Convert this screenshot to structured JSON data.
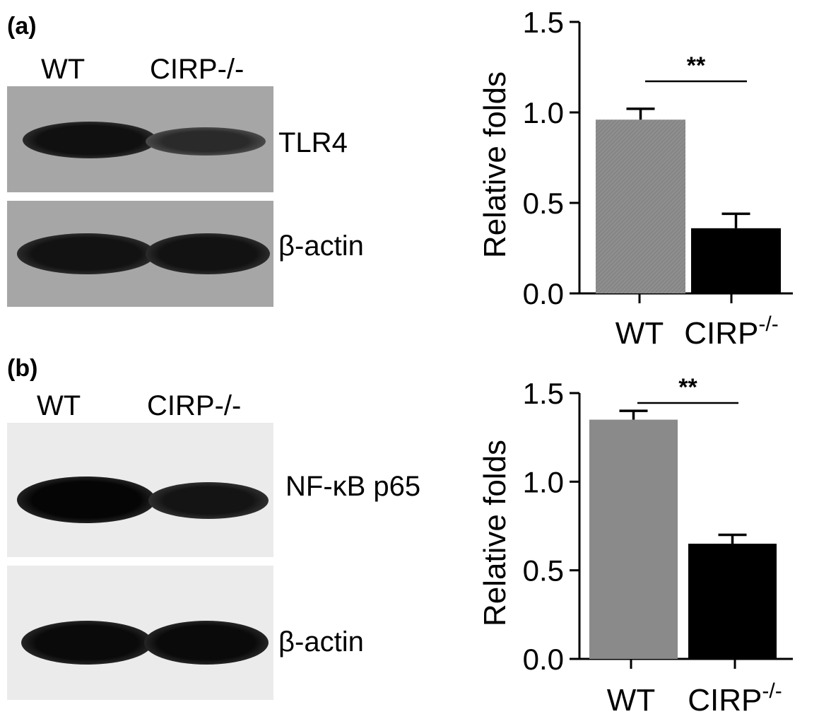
{
  "panel_a": {
    "label": "(a)",
    "blot": {
      "lanes": [
        "WT",
        "CIRP-/-"
      ],
      "bands": [
        "TLR4",
        "β-actin"
      ]
    }
  },
  "panel_b": {
    "label": "(b)",
    "blot": {
      "lanes": [
        "WT",
        "CIRP-/-"
      ],
      "bands": [
        "NF-κB p65",
        "β-actin"
      ]
    }
  },
  "colors": {
    "wt_bar_a": "#8c8c8c",
    "wt_bar_b": "#8a8a8a",
    "cirp_bar": "#000000",
    "blot_a_bg": "#a6a6a6",
    "blot_b_bg": "#ebebeb",
    "band": "#111111"
  },
  "chart_data": [
    {
      "type": "bar",
      "categories": [
        "WT",
        "CIRP"
      ],
      "category_superscripts": [
        "",
        "-/-"
      ],
      "values": [
        0.96,
        0.36
      ],
      "errors": [
        0.06,
        0.08
      ],
      "ylabel": "Relative folds",
      "ylim": [
        0,
        1.5
      ],
      "yticks": [
        "0.0",
        "0.5",
        "1.0",
        "1.5"
      ],
      "significance": "**",
      "grid": false
    },
    {
      "type": "bar",
      "categories": [
        "WT",
        "CIRP"
      ],
      "category_superscripts": [
        "",
        "-/-"
      ],
      "values": [
        1.35,
        0.65
      ],
      "errors": [
        0.05,
        0.05
      ],
      "ylabel": "Relative folds",
      "ylim": [
        0,
        1.5
      ],
      "yticks": [
        "0.0",
        "0.5",
        "1.0",
        "1.5"
      ],
      "significance": "**",
      "grid": false
    }
  ]
}
